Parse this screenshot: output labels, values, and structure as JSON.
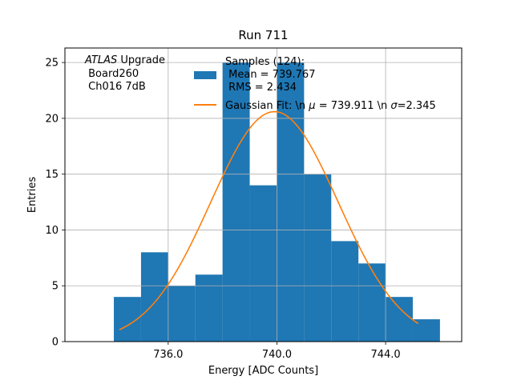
{
  "chart_data": {
    "type": "bar",
    "title": "Run 711",
    "xlabel": "Energy [ADC Counts]",
    "ylabel": "Entries",
    "xlim": [
      732.2,
      746.8
    ],
    "ylim": [
      0,
      26.3
    ],
    "grid": true,
    "x_ticks": [
      736,
      740,
      744
    ],
    "x_tick_labels": [
      "736.0",
      "740.0",
      "744.0"
    ],
    "y_ticks": [
      0,
      5,
      10,
      15,
      20,
      25
    ],
    "y_tick_labels": [
      "0",
      "5",
      "10",
      "15",
      "20",
      "25"
    ],
    "bin_edges": [
      734,
      735,
      736,
      737,
      738,
      739,
      740,
      741,
      742,
      743,
      744,
      745,
      746
    ],
    "counts": [
      4,
      8,
      5,
      6,
      25,
      14,
      25,
      15,
      9,
      7,
      4,
      2
    ],
    "bar_color": "#1f77b4",
    "fit": {
      "name": "Gaussian Fit",
      "mu": 739.911,
      "sigma": 2.345,
      "amplitude": 20.6,
      "x_range": [
        734.2,
        745.2
      ],
      "color": "#ff7f0e"
    },
    "annotation": {
      "line1_italic": "ATLAS",
      "line1_rest": " Upgrade",
      "line2": " Board260",
      "line3": " Ch016 7dB"
    },
    "legend": {
      "loc": "upper-right",
      "entries": [
        {
          "kind": "patch",
          "lines": [
            "Samples (124):",
            " Mean = 739.767",
            " RMS = 2.434"
          ],
          "color": "#1f77b4"
        },
        {
          "kind": "line",
          "text_before_mu": "Gaussian Fit: \\n ",
          "mu_symbol": "μ",
          "text_mid": " = 739.911 \\n ",
          "sigma_symbol": "σ",
          "text_end": "=2.345",
          "color": "#ff7f0e"
        }
      ]
    }
  }
}
